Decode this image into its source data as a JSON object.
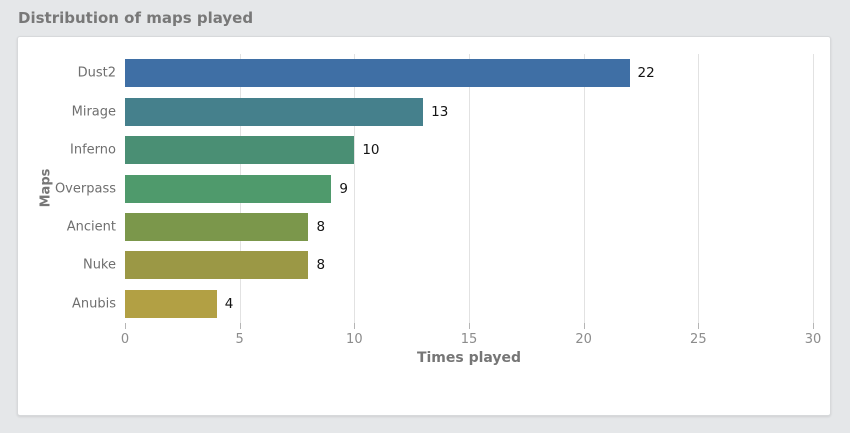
{
  "page": {
    "title": "Distribution of maps played",
    "background": "#e5e7e9",
    "card_background": "#ffffff"
  },
  "chart_data": {
    "type": "bar",
    "orientation": "horizontal",
    "categories": [
      "Dust2",
      "Mirage",
      "Inferno",
      "Overpass",
      "Ancient",
      "Nuke",
      "Anubis"
    ],
    "values": [
      22,
      13,
      10,
      9,
      8,
      8,
      4
    ],
    "bar_colors": [
      "#3f6fa5",
      "#45808c",
      "#4a8f74",
      "#4f9a6c",
      "#7b974b",
      "#9b9845",
      "#b2a044"
    ],
    "xlabel": "Times played",
    "ylabel": "Maps",
    "xlim": [
      0,
      30
    ],
    "xticks": [
      0,
      5,
      10,
      15,
      20,
      25,
      30
    ],
    "grid": "vertical",
    "gridline_color": "#e2e2e2",
    "value_label_color": "#141414",
    "legend": "none"
  }
}
